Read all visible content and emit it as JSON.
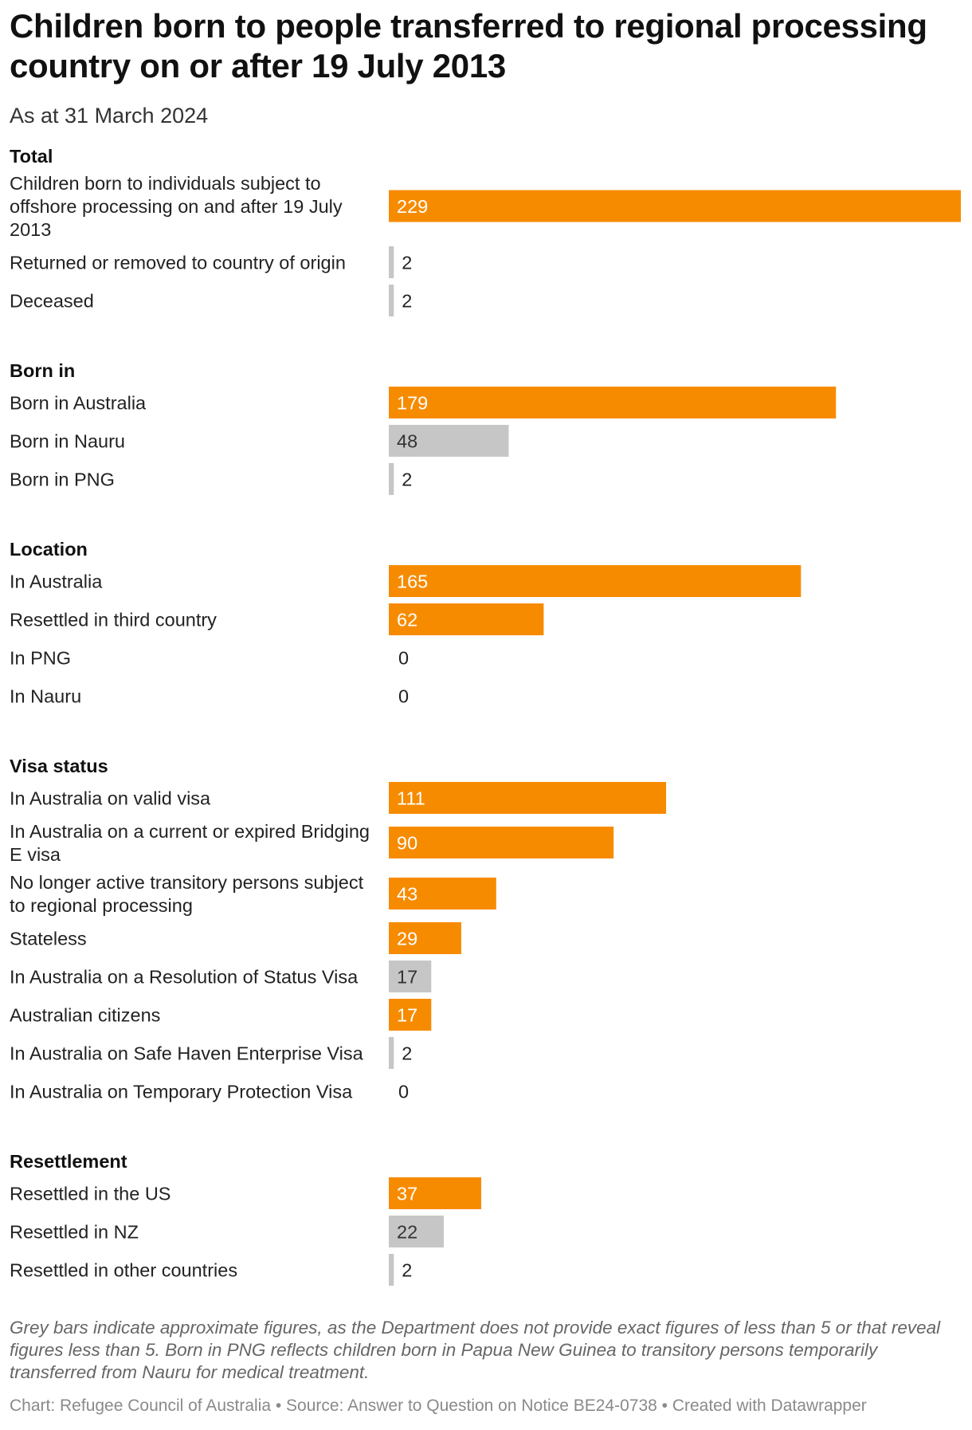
{
  "header": {
    "title": "Children born to people transferred to regional processing country on or after 19 July 2013",
    "subtitle": "As at 31 March 2024"
  },
  "colors": {
    "exact": "#F78B00",
    "approximate": "#C6C6C6",
    "approximate_label": "#333333",
    "exact_label": "#ffffff"
  },
  "chart_data": {
    "type": "bar",
    "orientation": "horizontal",
    "xlim": [
      0,
      229
    ],
    "grid": false,
    "legend": "none",
    "groups": [
      {
        "heading": "Total",
        "rows": [
          {
            "label": "Children born to individuals subject to offshore processing on and after 19 July 2013",
            "value": 229,
            "approximate": false
          },
          {
            "label": "Returned or removed to country of origin",
            "value": 2,
            "approximate": true
          },
          {
            "label": "Deceased",
            "value": 2,
            "approximate": true
          }
        ]
      },
      {
        "heading": "Born in",
        "rows": [
          {
            "label": "Born in Australia",
            "value": 179,
            "approximate": false
          },
          {
            "label": "Born in Nauru",
            "value": 48,
            "approximate": true
          },
          {
            "label": "Born in PNG",
            "value": 2,
            "approximate": true
          }
        ]
      },
      {
        "heading": "Location",
        "rows": [
          {
            "label": "In Australia",
            "value": 165,
            "approximate": false
          },
          {
            "label": "Resettled in third country",
            "value": 62,
            "approximate": false
          },
          {
            "label": "In PNG",
            "value": 0,
            "approximate": false
          },
          {
            "label": "In Nauru",
            "value": 0,
            "approximate": false
          }
        ]
      },
      {
        "heading": "Visa status",
        "rows": [
          {
            "label": "In Australia on valid visa",
            "value": 111,
            "approximate": false
          },
          {
            "label": "In Australia on a current or expired Bridging E visa",
            "value": 90,
            "approximate": false
          },
          {
            "label": "No longer active transitory persons subject to regional processing",
            "value": 43,
            "approximate": false
          },
          {
            "label": "Stateless",
            "value": 29,
            "approximate": false
          },
          {
            "label": "In Australia on a Resolution of Status Visa",
            "value": 17,
            "approximate": true
          },
          {
            "label": "Australian citizens",
            "value": 17,
            "approximate": false
          },
          {
            "label": "In Australia on Safe Haven Enterprise Visa",
            "value": 2,
            "approximate": true
          },
          {
            "label": "In Australia on Temporary Protection Visa",
            "value": 0,
            "approximate": false
          }
        ]
      },
      {
        "heading": "Resettlement",
        "rows": [
          {
            "label": "Resettled in the US",
            "value": 37,
            "approximate": false
          },
          {
            "label": "Resettled in NZ",
            "value": 22,
            "approximate": true
          },
          {
            "label": "Resettled in other countries",
            "value": 2,
            "approximate": true
          }
        ]
      }
    ]
  },
  "notes": "Grey bars indicate approximate figures, as the Department does not provide exact figures of less than 5 or that reveal figures less than 5. Born in PNG reflects children born in Papua New Guinea to transitory persons temporarily transferred from Nauru for medical treatment.",
  "footer": "Chart: Refugee Council of Australia • Source: Answer to Question on Notice BE24-0738 • Created with Datawrapper"
}
